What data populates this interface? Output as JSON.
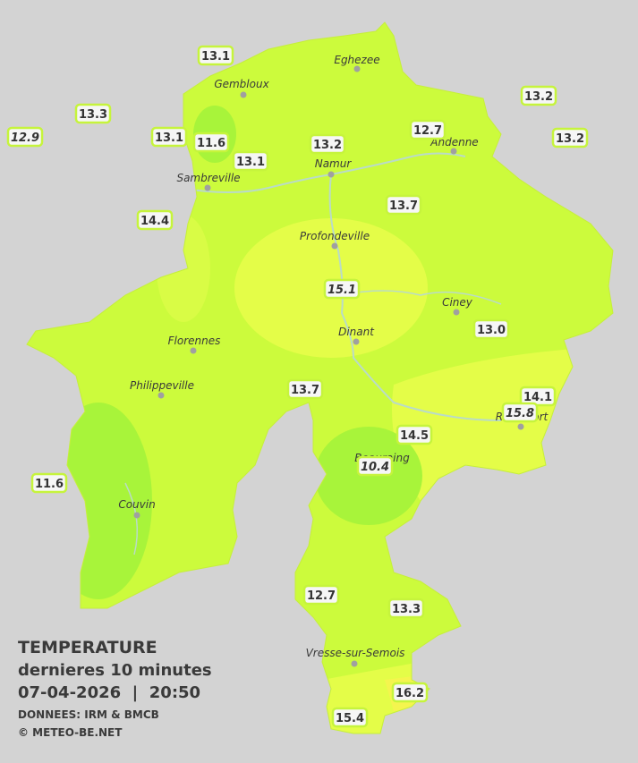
{
  "stations": [
    {
      "label": "13.1",
      "italic": false
    },
    {
      "label": "13.3",
      "italic": false
    },
    {
      "label": "12.9",
      "italic": true
    },
    {
      "label": "13.1",
      "italic": false
    },
    {
      "label": "11.6",
      "italic": false
    },
    {
      "label": "13.1",
      "italic": false
    },
    {
      "label": "13.2",
      "italic": false
    },
    {
      "label": "12.7",
      "italic": false
    },
    {
      "label": "13.2",
      "italic": false
    },
    {
      "label": "13.2",
      "italic": false
    },
    {
      "label": "13.7",
      "italic": false
    },
    {
      "label": "14.4",
      "italic": false
    },
    {
      "label": "15.1",
      "italic": true
    },
    {
      "label": "13.0",
      "italic": false
    },
    {
      "label": "13.7",
      "italic": false
    },
    {
      "label": "14.1",
      "italic": false
    },
    {
      "label": "15.8",
      "italic": true
    },
    {
      "label": "14.5",
      "italic": false
    },
    {
      "label": "10.4",
      "italic": true
    },
    {
      "label": "11.6",
      "italic": false
    },
    {
      "label": "12.7",
      "italic": false
    },
    {
      "label": "13.3",
      "italic": false
    },
    {
      "label": "16.2",
      "italic": false
    },
    {
      "label": "15.4",
      "italic": false
    }
  ],
  "towns": [
    "Eghezee",
    "Gembloux",
    "Andenne",
    "Namur",
    "Sambreville",
    "Profondeville",
    "Ciney",
    "Dinant",
    "Florennes",
    "Philippeville",
    "Rochefort",
    "Beauraing",
    "Couvin",
    "Vresse-sur-Semois"
  ],
  "legend": {
    "title": "TEMPERATURE",
    "subtitle": "dernieres 10 minutes",
    "datetime": "07-04-2026  |  20:50",
    "source": "DONNEES: IRM & BMCB",
    "credit": "© METEO-BE.NET"
  }
}
